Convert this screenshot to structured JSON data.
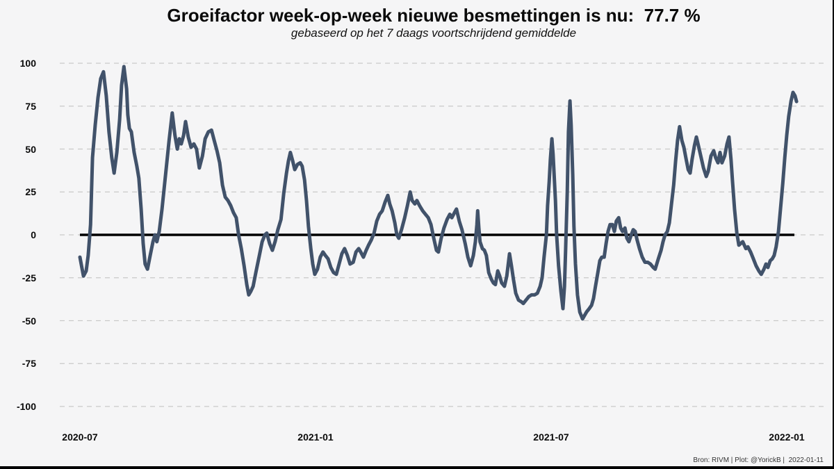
{
  "title": "Groeifactor week-op-week nieuwe besmettingen is nu:  77.7 %",
  "subtitle": "gebaseerd op het 7 daags voortschrijdend gemiddelde",
  "credit": "Bron: RIVM | Plot: @YorickB |  2022-01-11",
  "current_value_pct": 77.7,
  "colors": {
    "background": "#f5f5f6",
    "line": "#41526a",
    "zero_line": "#000000",
    "grid": "#c9c9c9",
    "text": "#0a0a0a"
  },
  "chart_data": {
    "type": "line",
    "title": "Groeifactor week-op-week nieuwe besmettingen is nu:  77.7 %",
    "subtitle": "gebaseerd op het 7 daags voortschrijdend gemiddelde",
    "xlabel": "",
    "ylabel": "",
    "x_unit": "months since 2020-07-01",
    "xlim": [
      -0.55,
      18.8
    ],
    "ylim": [
      -112,
      108
    ],
    "grid": "horizontal dashed",
    "zero_line": true,
    "legend": "none",
    "x_ticks": [
      {
        "label": "2020-07",
        "m": 0
      },
      {
        "label": "2021-01",
        "m": 6
      },
      {
        "label": "2021-07",
        "m": 12
      },
      {
        "label": "2022-01",
        "m": 18
      }
    ],
    "y_ticks": [
      100,
      75,
      50,
      25,
      0,
      -25,
      -50,
      -75,
      -100
    ],
    "series": [
      {
        "name": "groeifactor week-op-week (7-daags gemiddelde)",
        "color": "#41526a",
        "points": [
          [
            0.0,
            -13
          ],
          [
            0.04,
            -18
          ],
          [
            0.09,
            -24
          ],
          [
            0.16,
            -21
          ],
          [
            0.21,
            -12
          ],
          [
            0.27,
            6
          ],
          [
            0.32,
            45
          ],
          [
            0.39,
            64
          ],
          [
            0.46,
            80
          ],
          [
            0.53,
            91
          ],
          [
            0.6,
            95
          ],
          [
            0.67,
            81
          ],
          [
            0.74,
            60
          ],
          [
            0.81,
            45
          ],
          [
            0.87,
            36
          ],
          [
            0.94,
            48
          ],
          [
            1.01,
            67
          ],
          [
            1.06,
            87
          ],
          [
            1.12,
            98
          ],
          [
            1.19,
            85
          ],
          [
            1.22,
            70
          ],
          [
            1.26,
            62
          ],
          [
            1.31,
            60
          ],
          [
            1.38,
            48
          ],
          [
            1.45,
            40
          ],
          [
            1.5,
            33
          ],
          [
            1.56,
            15
          ],
          [
            1.61,
            -5
          ],
          [
            1.66,
            -17
          ],
          [
            1.72,
            -20
          ],
          [
            1.79,
            -12
          ],
          [
            1.86,
            -4
          ],
          [
            1.91,
            0
          ],
          [
            1.96,
            -4
          ],
          [
            2.02,
            2
          ],
          [
            2.09,
            15
          ],
          [
            2.18,
            35
          ],
          [
            2.27,
            55
          ],
          [
            2.35,
            71
          ],
          [
            2.42,
            58
          ],
          [
            2.48,
            50
          ],
          [
            2.53,
            56
          ],
          [
            2.58,
            53
          ],
          [
            2.64,
            58
          ],
          [
            2.69,
            66
          ],
          [
            2.76,
            57
          ],
          [
            2.83,
            51
          ],
          [
            2.9,
            53
          ],
          [
            2.97,
            50
          ],
          [
            3.04,
            39
          ],
          [
            3.12,
            46
          ],
          [
            3.19,
            56
          ],
          [
            3.27,
            60
          ],
          [
            3.35,
            61
          ],
          [
            3.42,
            55
          ],
          [
            3.49,
            49
          ],
          [
            3.56,
            42
          ],
          [
            3.63,
            29
          ],
          [
            3.7,
            22
          ],
          [
            3.77,
            20
          ],
          [
            3.84,
            17
          ],
          [
            3.91,
            13
          ],
          [
            3.98,
            10
          ],
          [
            4.04,
            0
          ],
          [
            4.11,
            -8
          ],
          [
            4.18,
            -18
          ],
          [
            4.25,
            -29
          ],
          [
            4.3,
            -35
          ],
          [
            4.35,
            -33
          ],
          [
            4.41,
            -30
          ],
          [
            4.48,
            -22
          ],
          [
            4.57,
            -12
          ],
          [
            4.64,
            -4
          ],
          [
            4.71,
            0
          ],
          [
            4.76,
            1
          ],
          [
            4.83,
            -5
          ],
          [
            4.9,
            -9
          ],
          [
            4.97,
            -4
          ],
          [
            5.04,
            3
          ],
          [
            5.12,
            9
          ],
          [
            5.19,
            24
          ],
          [
            5.26,
            36
          ],
          [
            5.31,
            43
          ],
          [
            5.36,
            48
          ],
          [
            5.42,
            43
          ],
          [
            5.47,
            38
          ],
          [
            5.54,
            41
          ],
          [
            5.61,
            42
          ],
          [
            5.66,
            40
          ],
          [
            5.72,
            32
          ],
          [
            5.77,
            20
          ],
          [
            5.82,
            5
          ],
          [
            5.88,
            -8
          ],
          [
            5.93,
            -17
          ],
          [
            5.98,
            -23
          ],
          [
            6.05,
            -20
          ],
          [
            6.12,
            -13
          ],
          [
            6.19,
            -10
          ],
          [
            6.25,
            -12
          ],
          [
            6.32,
            -14
          ],
          [
            6.39,
            -19
          ],
          [
            6.46,
            -22
          ],
          [
            6.53,
            -23
          ],
          [
            6.6,
            -17
          ],
          [
            6.67,
            -11
          ],
          [
            6.74,
            -8
          ],
          [
            6.81,
            -12
          ],
          [
            6.88,
            -17
          ],
          [
            6.96,
            -16
          ],
          [
            7.03,
            -10
          ],
          [
            7.1,
            -8
          ],
          [
            7.15,
            -10
          ],
          [
            7.22,
            -13
          ],
          [
            7.29,
            -9
          ],
          [
            7.35,
            -6
          ],
          [
            7.42,
            -3
          ],
          [
            7.49,
            1
          ],
          [
            7.56,
            8
          ],
          [
            7.63,
            12
          ],
          [
            7.7,
            14
          ],
          [
            7.77,
            19
          ],
          [
            7.84,
            23
          ],
          [
            7.89,
            18
          ],
          [
            7.95,
            14
          ],
          [
            8.02,
            7
          ],
          [
            8.07,
            0
          ],
          [
            8.12,
            -2
          ],
          [
            8.19,
            3
          ],
          [
            8.27,
            10
          ],
          [
            8.34,
            17
          ],
          [
            8.41,
            25
          ],
          [
            8.46,
            20
          ],
          [
            8.53,
            18
          ],
          [
            8.58,
            20
          ],
          [
            8.65,
            17
          ],
          [
            8.73,
            14
          ],
          [
            8.8,
            12
          ],
          [
            8.87,
            10
          ],
          [
            8.94,
            6
          ],
          [
            9.01,
            -2
          ],
          [
            9.08,
            -9
          ],
          [
            9.13,
            -10
          ],
          [
            9.2,
            -2
          ],
          [
            9.27,
            4
          ],
          [
            9.35,
            9
          ],
          [
            9.42,
            12
          ],
          [
            9.47,
            10
          ],
          [
            9.54,
            13
          ],
          [
            9.59,
            15
          ],
          [
            9.66,
            8
          ],
          [
            9.73,
            3
          ],
          [
            9.81,
            -5
          ],
          [
            9.88,
            -13
          ],
          [
            9.95,
            -18
          ],
          [
            10.02,
            -12
          ],
          [
            10.07,
            -4
          ],
          [
            10.11,
            6
          ],
          [
            10.13,
            14
          ],
          [
            10.16,
            4
          ],
          [
            10.19,
            -4
          ],
          [
            10.25,
            -8
          ],
          [
            10.3,
            -9
          ],
          [
            10.35,
            -12
          ],
          [
            10.41,
            -22
          ],
          [
            10.48,
            -26
          ],
          [
            10.53,
            -28
          ],
          [
            10.58,
            -29
          ],
          [
            10.64,
            -21
          ],
          [
            10.69,
            -24
          ],
          [
            10.74,
            -28
          ],
          [
            10.81,
            -30
          ],
          [
            10.87,
            -24
          ],
          [
            10.94,
            -11
          ],
          [
            10.99,
            -18
          ],
          [
            11.04,
            -26
          ],
          [
            11.1,
            -34
          ],
          [
            11.17,
            -38
          ],
          [
            11.24,
            -39
          ],
          [
            11.29,
            -40
          ],
          [
            11.36,
            -38
          ],
          [
            11.43,
            -36
          ],
          [
            11.5,
            -35
          ],
          [
            11.58,
            -35
          ],
          [
            11.65,
            -34
          ],
          [
            11.72,
            -30
          ],
          [
            11.77,
            -25
          ],
          [
            11.82,
            -13
          ],
          [
            11.88,
            0
          ],
          [
            11.91,
            17
          ],
          [
            11.95,
            31
          ],
          [
            11.98,
            44
          ],
          [
            12.02,
            56
          ],
          [
            12.05,
            47
          ],
          [
            12.11,
            20
          ],
          [
            12.14,
            0
          ],
          [
            12.19,
            -18
          ],
          [
            12.25,
            -33
          ],
          [
            12.3,
            -43
          ],
          [
            12.34,
            -30
          ],
          [
            12.37,
            -8
          ],
          [
            12.41,
            25
          ],
          [
            12.44,
            60
          ],
          [
            12.48,
            78
          ],
          [
            12.51,
            64
          ],
          [
            12.55,
            35
          ],
          [
            12.58,
            5
          ],
          [
            12.62,
            -17
          ],
          [
            12.67,
            -35
          ],
          [
            12.73,
            -45
          ],
          [
            12.8,
            -49
          ],
          [
            12.85,
            -47
          ],
          [
            12.9,
            -45
          ],
          [
            12.97,
            -43
          ],
          [
            13.03,
            -41
          ],
          [
            13.08,
            -37
          ],
          [
            13.13,
            -30
          ],
          [
            13.19,
            -22
          ],
          [
            13.24,
            -15
          ],
          [
            13.29,
            -13
          ],
          [
            13.35,
            -13
          ],
          [
            13.4,
            -5
          ],
          [
            13.45,
            2
          ],
          [
            13.5,
            6
          ],
          [
            13.56,
            6
          ],
          [
            13.61,
            2
          ],
          [
            13.66,
            8
          ],
          [
            13.72,
            10
          ],
          [
            13.77,
            4
          ],
          [
            13.82,
            2
          ],
          [
            13.88,
            4
          ],
          [
            13.93,
            -2
          ],
          [
            13.98,
            -4
          ],
          [
            14.04,
            0
          ],
          [
            14.09,
            3
          ],
          [
            14.14,
            2
          ],
          [
            14.19,
            -3
          ],
          [
            14.25,
            -8
          ],
          [
            14.32,
            -13
          ],
          [
            14.39,
            -16
          ],
          [
            14.46,
            -16
          ],
          [
            14.53,
            -17
          ],
          [
            14.6,
            -19
          ],
          [
            14.65,
            -20
          ],
          [
            14.73,
            -14
          ],
          [
            14.8,
            -9
          ],
          [
            14.85,
            -4
          ],
          [
            14.9,
            0
          ],
          [
            14.96,
            2
          ],
          [
            15.01,
            7
          ],
          [
            15.06,
            17
          ],
          [
            15.12,
            29
          ],
          [
            15.17,
            43
          ],
          [
            15.22,
            55
          ],
          [
            15.27,
            63
          ],
          [
            15.33,
            55
          ],
          [
            15.38,
            51
          ],
          [
            15.43,
            45
          ],
          [
            15.49,
            38
          ],
          [
            15.54,
            36
          ],
          [
            15.59,
            44
          ],
          [
            15.65,
            52
          ],
          [
            15.7,
            57
          ],
          [
            15.75,
            52
          ],
          [
            15.81,
            46
          ],
          [
            15.88,
            39
          ],
          [
            15.95,
            34
          ],
          [
            16.0,
            37
          ],
          [
            16.07,
            46
          ],
          [
            16.14,
            49
          ],
          [
            16.19,
            45
          ],
          [
            16.25,
            42
          ],
          [
            16.3,
            48
          ],
          [
            16.35,
            42
          ],
          [
            16.42,
            46
          ],
          [
            16.48,
            53
          ],
          [
            16.53,
            57
          ],
          [
            16.58,
            44
          ],
          [
            16.62,
            31
          ],
          [
            16.67,
            15
          ],
          [
            16.73,
            1
          ],
          [
            16.78,
            -6
          ],
          [
            16.83,
            -5
          ],
          [
            16.88,
            -4
          ],
          [
            16.96,
            -8
          ],
          [
            17.01,
            -7
          ],
          [
            17.08,
            -10
          ],
          [
            17.15,
            -14
          ],
          [
            17.22,
            -18
          ],
          [
            17.29,
            -21
          ],
          [
            17.35,
            -23
          ],
          [
            17.42,
            -20
          ],
          [
            17.47,
            -17
          ],
          [
            17.52,
            -19
          ],
          [
            17.58,
            -15
          ],
          [
            17.63,
            -14
          ],
          [
            17.68,
            -12
          ],
          [
            17.73,
            -7
          ],
          [
            17.79,
            2
          ],
          [
            17.84,
            15
          ],
          [
            17.9,
            30
          ],
          [
            17.95,
            45
          ],
          [
            18.0,
            58
          ],
          [
            18.05,
            69
          ],
          [
            18.11,
            78
          ],
          [
            18.16,
            83
          ],
          [
            18.21,
            81
          ],
          [
            18.25,
            77.7
          ]
        ]
      }
    ]
  }
}
